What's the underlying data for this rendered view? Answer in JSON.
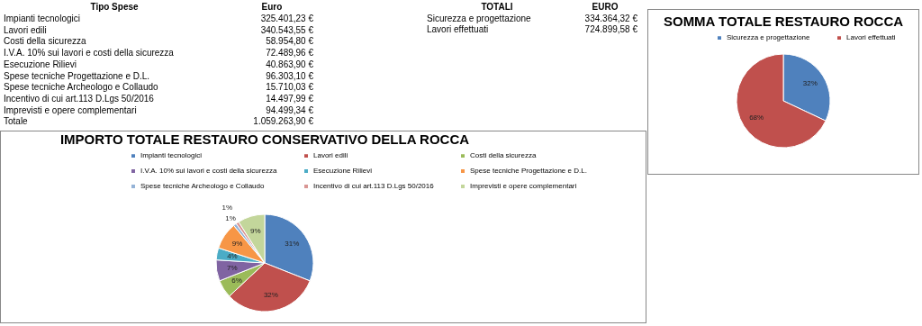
{
  "chart_data": [
    {
      "type": "other",
      "xlabel": "Tipo Spese",
      "ylabel": "Euro",
      "categories": [
        "Impianti tecnologici",
        "Lavori edili",
        "Costi della sicurezza",
        "I.V.A. 10% sui lavori e costi della sicurezza",
        "Esecuzione Rilievi",
        "Spese tecniche Progettazione e D.L.",
        "Spese tecniche Archeologo e Collaudo",
        "Incentivo di cui art.113 D.Lgs 50/2016",
        "Imprevisti e opere complementari",
        "Totale"
      ],
      "values": [
        325401.23,
        340543.55,
        58954.8,
        72489.96,
        40863.9,
        96303.1,
        15710.03,
        14497.99,
        94499.34,
        1059263.9
      ],
      "value_labels": [
        "325.401,23 €",
        "340.543,55 €",
        "58.954,80 €",
        "72.489,96 €",
        "40.863,90 €",
        "96.303,10 €",
        "15.710,03 €",
        "14.497,99 €",
        "94.499,34 €",
        "1.059.263,90 €"
      ]
    },
    {
      "type": "other",
      "xlabel": "TOTALI",
      "ylabel": "EURO",
      "categories": [
        "Sicurezza e progettazione",
        "Lavori effettuati"
      ],
      "values": [
        334364.32,
        724899.58
      ],
      "value_labels": [
        "334.364,32 €",
        "724.899,58 €"
      ]
    },
    {
      "type": "pie",
      "title": "SOMMA TOTALE RESTAURO ROCCA",
      "categories": [
        "Sicurezza e progettazione",
        "Lavori effettuati"
      ],
      "values": [
        32,
        68
      ],
      "colors": [
        "#4f81bd",
        "#c0504d"
      ],
      "value_labels": [
        "32%",
        "68%"
      ],
      "legend": "top"
    },
    {
      "type": "pie",
      "title": "IMPORTO TOTALE RESTAURO CONSERVATIVO DELLA ROCCA",
      "categories": [
        "Impianti tecnologici",
        "Lavori edili",
        "Costi della sicurezza",
        "I.V.A. 10% sui lavori e costi della sicurezza",
        "Esecuzione Rilievi",
        "Spese tecniche Progettazione e D.L.",
        "Spese tecniche Archeologo e Collaudo",
        "Incentivo di cui art.113 D.Lgs 50/2016",
        "Imprevisti e opere complementari"
      ],
      "values": [
        31,
        32,
        6,
        7,
        4,
        9,
        1,
        1,
        9
      ],
      "colors": [
        "#4f81bd",
        "#c0504d",
        "#9bbb59",
        "#8064a2",
        "#4bacc6",
        "#f79646",
        "#95b3d7",
        "#d99694",
        "#c3d69b"
      ],
      "value_labels": [
        "31%",
        "32%",
        "6%",
        "7%",
        "4%",
        "9%",
        "1%",
        "1%",
        "9%"
      ],
      "legend": "top"
    }
  ]
}
